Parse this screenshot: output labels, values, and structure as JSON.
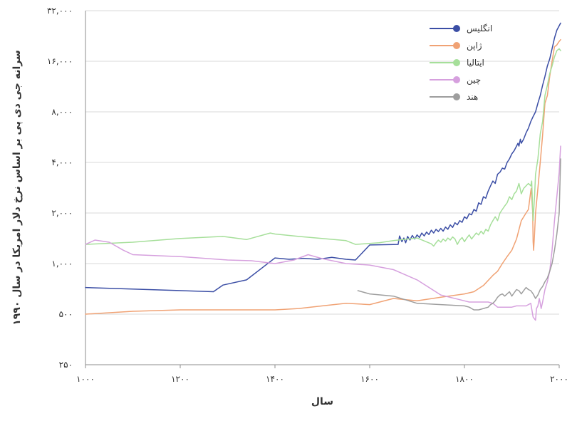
{
  "chart_data": {
    "type": "line",
    "xlabel": "سال",
    "ylabel": "سرانه جی دی پی بر اساس نرخ دلار امریکا در سال ۱۹۹۰",
    "xlim": [
      1000,
      2000
    ],
    "ylim": [
      250,
      32000
    ],
    "yscale": "log2",
    "grid": "horizontal",
    "legend": "top-right",
    "x_ticks": [
      {
        "value": 1000,
        "label": "۱۰۰۰"
      },
      {
        "value": 1200,
        "label": "۱۲۰۰"
      },
      {
        "value": 1400,
        "label": "۱۴۰۰"
      },
      {
        "value": 1600,
        "label": "۱۶۰۰"
      },
      {
        "value": 1800,
        "label": "۱۸۰۰"
      },
      {
        "value": 2000,
        "label": "۲۰۰۰"
      }
    ],
    "y_ticks": [
      {
        "value": 250,
        "label": "۲۵۰"
      },
      {
        "value": 500,
        "label": "۵۰۰"
      },
      {
        "value": 1000,
        "label": "۱,۰۰۰"
      },
      {
        "value": 2000,
        "label": "۲,۰۰۰"
      },
      {
        "value": 4000,
        "label": "۴,۰۰۰"
      },
      {
        "value": 8000,
        "label": "۸,۰۰۰"
      },
      {
        "value": 16000,
        "label": "۱۶,۰۰۰"
      },
      {
        "value": 32000,
        "label": "۳۲,۰۰۰"
      }
    ],
    "series": [
      {
        "name": "انگلیس",
        "color": "#3b4ea5",
        "points": [
          [
            1000,
            720
          ],
          [
            1270,
            680
          ],
          [
            1290,
            745
          ],
          [
            1340,
            800
          ],
          [
            1400,
            1080
          ],
          [
            1430,
            1060
          ],
          [
            1460,
            1075
          ],
          [
            1490,
            1060
          ],
          [
            1520,
            1090
          ],
          [
            1550,
            1060
          ],
          [
            1570,
            1050
          ],
          [
            1600,
            1290
          ],
          [
            1660,
            1300
          ],
          [
            1663,
            1460
          ],
          [
            1668,
            1350
          ],
          [
            1672,
            1420
          ],
          [
            1676,
            1330
          ],
          [
            1680,
            1450
          ],
          [
            1685,
            1380
          ],
          [
            1690,
            1470
          ],
          [
            1695,
            1400
          ],
          [
            1700,
            1480
          ],
          [
            1705,
            1430
          ],
          [
            1710,
            1520
          ],
          [
            1715,
            1460
          ],
          [
            1720,
            1540
          ],
          [
            1725,
            1490
          ],
          [
            1730,
            1580
          ],
          [
            1735,
            1520
          ],
          [
            1740,
            1600
          ],
          [
            1745,
            1550
          ],
          [
            1750,
            1620
          ],
          [
            1755,
            1560
          ],
          [
            1760,
            1650
          ],
          [
            1765,
            1600
          ],
          [
            1770,
            1700
          ],
          [
            1775,
            1640
          ],
          [
            1780,
            1750
          ],
          [
            1785,
            1700
          ],
          [
            1790,
            1800
          ],
          [
            1795,
            1760
          ],
          [
            1800,
            1900
          ],
          [
            1805,
            1850
          ],
          [
            1810,
            1980
          ],
          [
            1815,
            1950
          ],
          [
            1820,
            2100
          ],
          [
            1825,
            2050
          ],
          [
            1830,
            2300
          ],
          [
            1835,
            2250
          ],
          [
            1840,
            2500
          ],
          [
            1845,
            2450
          ],
          [
            1850,
            2700
          ],
          [
            1855,
            2900
          ],
          [
            1860,
            3100
          ],
          [
            1865,
            3000
          ],
          [
            1870,
            3400
          ],
          [
            1875,
            3500
          ],
          [
            1880,
            3700
          ],
          [
            1885,
            3650
          ],
          [
            1890,
            4000
          ],
          [
            1895,
            4200
          ],
          [
            1900,
            4500
          ],
          [
            1905,
            4700
          ],
          [
            1910,
            5000
          ],
          [
            1913,
            5200
          ],
          [
            1915,
            5000
          ],
          [
            1918,
            5500
          ],
          [
            1920,
            5200
          ],
          [
            1925,
            5500
          ],
          [
            1930,
            6000
          ],
          [
            1935,
            6400
          ],
          [
            1940,
            7000
          ],
          [
            1945,
            7500
          ],
          [
            1950,
            8000
          ],
          [
            1955,
            9000
          ],
          [
            1960,
            10000
          ],
          [
            1965,
            11500
          ],
          [
            1970,
            13000
          ],
          [
            1975,
            15000
          ],
          [
            1980,
            16500
          ],
          [
            1985,
            19000
          ],
          [
            1990,
            22000
          ],
          [
            1995,
            24500
          ],
          [
            2003,
            27000
          ]
        ]
      },
      {
        "name": "ژاپن",
        "color": "#f0a274",
        "points": [
          [
            1000,
            500
          ],
          [
            1100,
            520
          ],
          [
            1200,
            530
          ],
          [
            1300,
            530
          ],
          [
            1400,
            530
          ],
          [
            1450,
            540
          ],
          [
            1500,
            560
          ],
          [
            1550,
            580
          ],
          [
            1600,
            570
          ],
          [
            1650,
            620
          ],
          [
            1700,
            600
          ],
          [
            1750,
            630
          ],
          [
            1800,
            660
          ],
          [
            1820,
            680
          ],
          [
            1840,
            740
          ],
          [
            1860,
            850
          ],
          [
            1870,
            900
          ],
          [
            1880,
            1000
          ],
          [
            1890,
            1100
          ],
          [
            1900,
            1200
          ],
          [
            1910,
            1400
          ],
          [
            1920,
            1800
          ],
          [
            1930,
            2000
          ],
          [
            1935,
            2100
          ],
          [
            1940,
            2700
          ],
          [
            1941,
            2800
          ],
          [
            1944,
            2000
          ],
          [
            1945,
            1350
          ],
          [
            1946,
            1200
          ],
          [
            1948,
            1500
          ],
          [
            1950,
            2000
          ],
          [
            1955,
            2800
          ],
          [
            1960,
            4000
          ],
          [
            1965,
            5800
          ],
          [
            1970,
            9000
          ],
          [
            1975,
            10000
          ],
          [
            1980,
            13000
          ],
          [
            1985,
            16000
          ],
          [
            1990,
            19500
          ],
          [
            1995,
            20000
          ],
          [
            2000,
            21000
          ],
          [
            2003,
            21500
          ]
        ]
      },
      {
        "name": "ایتالیا",
        "color": "#a6df9a",
        "points": [
          [
            1000,
            1300
          ],
          [
            1100,
            1340
          ],
          [
            1200,
            1410
          ],
          [
            1290,
            1450
          ],
          [
            1340,
            1390
          ],
          [
            1390,
            1520
          ],
          [
            1400,
            1500
          ],
          [
            1450,
            1450
          ],
          [
            1550,
            1370
          ],
          [
            1570,
            1300
          ],
          [
            1620,
            1330
          ],
          [
            1650,
            1370
          ],
          [
            1700,
            1420
          ],
          [
            1730,
            1310
          ],
          [
            1735,
            1270
          ],
          [
            1740,
            1330
          ],
          [
            1745,
            1380
          ],
          [
            1750,
            1340
          ],
          [
            1755,
            1400
          ],
          [
            1760,
            1360
          ],
          [
            1765,
            1420
          ],
          [
            1770,
            1380
          ],
          [
            1775,
            1440
          ],
          [
            1780,
            1400
          ],
          [
            1785,
            1300
          ],
          [
            1790,
            1380
          ],
          [
            1795,
            1430
          ],
          [
            1800,
            1350
          ],
          [
            1805,
            1420
          ],
          [
            1810,
            1480
          ],
          [
            1815,
            1400
          ],
          [
            1820,
            1460
          ],
          [
            1825,
            1520
          ],
          [
            1830,
            1480
          ],
          [
            1835,
            1560
          ],
          [
            1840,
            1500
          ],
          [
            1845,
            1600
          ],
          [
            1850,
            1560
          ],
          [
            1855,
            1700
          ],
          [
            1860,
            1800
          ],
          [
            1865,
            1900
          ],
          [
            1870,
            1800
          ],
          [
            1875,
            2000
          ],
          [
            1880,
            2100
          ],
          [
            1885,
            2200
          ],
          [
            1890,
            2300
          ],
          [
            1895,
            2500
          ],
          [
            1900,
            2400
          ],
          [
            1905,
            2600
          ],
          [
            1910,
            2700
          ],
          [
            1915,
            3000
          ],
          [
            1920,
            2600
          ],
          [
            1925,
            2800
          ],
          [
            1930,
            2900
          ],
          [
            1935,
            3000
          ],
          [
            1940,
            2900
          ],
          [
            1942,
            3100
          ],
          [
            1945,
            1800
          ],
          [
            1948,
            2500
          ],
          [
            1950,
            3400
          ],
          [
            1955,
            4200
          ],
          [
            1960,
            5900
          ],
          [
            1965,
            7000
          ],
          [
            1970,
            10000
          ],
          [
            1975,
            11500
          ],
          [
            1980,
            13500
          ],
          [
            1985,
            15000
          ],
          [
            1990,
            17000
          ],
          [
            1995,
            18500
          ],
          [
            2000,
            19000
          ],
          [
            2003,
            18500
          ]
        ]
      },
      {
        "name": "چین",
        "color": "#d6a0de",
        "points": [
          [
            1000,
            1300
          ],
          [
            1020,
            1380
          ],
          [
            1050,
            1340
          ],
          [
            1080,
            1200
          ],
          [
            1100,
            1130
          ],
          [
            1200,
            1100
          ],
          [
            1300,
            1050
          ],
          [
            1350,
            1040
          ],
          [
            1400,
            1000
          ],
          [
            1440,
            1050
          ],
          [
            1470,
            1130
          ],
          [
            1500,
            1070
          ],
          [
            1550,
            1000
          ],
          [
            1600,
            980
          ],
          [
            1650,
            920
          ],
          [
            1700,
            800
          ],
          [
            1750,
            650
          ],
          [
            1800,
            600
          ],
          [
            1810,
            590
          ],
          [
            1820,
            590
          ],
          [
            1830,
            590
          ],
          [
            1840,
            590
          ],
          [
            1850,
            590
          ],
          [
            1860,
            580
          ],
          [
            1870,
            550
          ],
          [
            1880,
            550
          ],
          [
            1890,
            550
          ],
          [
            1900,
            550
          ],
          [
            1910,
            560
          ],
          [
            1920,
            560
          ],
          [
            1930,
            560
          ],
          [
            1935,
            570
          ],
          [
            1940,
            580
          ],
          [
            1945,
            480
          ],
          [
            1950,
            460
          ],
          [
            1952,
            540
          ],
          [
            1955,
            560
          ],
          [
            1958,
            620
          ],
          [
            1960,
            580
          ],
          [
            1962,
            540
          ],
          [
            1965,
            590
          ],
          [
            1970,
            700
          ],
          [
            1975,
            780
          ],
          [
            1980,
            900
          ],
          [
            1985,
            1200
          ],
          [
            1990,
            1800
          ],
          [
            1995,
            2500
          ],
          [
            2000,
            3500
          ],
          [
            2003,
            5000
          ]
        ]
      },
      {
        "name": "هند",
        "color": "#9e9e9e",
        "points": [
          [
            1575,
            690
          ],
          [
            1600,
            660
          ],
          [
            1650,
            640
          ],
          [
            1700,
            580
          ],
          [
            1750,
            570
          ],
          [
            1800,
            560
          ],
          [
            1810,
            550
          ],
          [
            1820,
            530
          ],
          [
            1830,
            530
          ],
          [
            1840,
            540
          ],
          [
            1850,
            550
          ],
          [
            1855,
            570
          ],
          [
            1860,
            580
          ],
          [
            1865,
            600
          ],
          [
            1870,
            630
          ],
          [
            1875,
            650
          ],
          [
            1880,
            660
          ],
          [
            1885,
            640
          ],
          [
            1890,
            660
          ],
          [
            1895,
            680
          ],
          [
            1900,
            640
          ],
          [
            1905,
            670
          ],
          [
            1910,
            700
          ],
          [
            1915,
            690
          ],
          [
            1920,
            660
          ],
          [
            1925,
            690
          ],
          [
            1930,
            720
          ],
          [
            1935,
            700
          ],
          [
            1940,
            690
          ],
          [
            1945,
            660
          ],
          [
            1950,
            620
          ],
          [
            1955,
            650
          ],
          [
            1960,
            700
          ],
          [
            1965,
            730
          ],
          [
            1970,
            780
          ],
          [
            1975,
            820
          ],
          [
            1980,
            900
          ],
          [
            1985,
            1000
          ],
          [
            1990,
            1200
          ],
          [
            1995,
            1500
          ],
          [
            2000,
            2000
          ],
          [
            2003,
            4200
          ]
        ]
      }
    ]
  }
}
